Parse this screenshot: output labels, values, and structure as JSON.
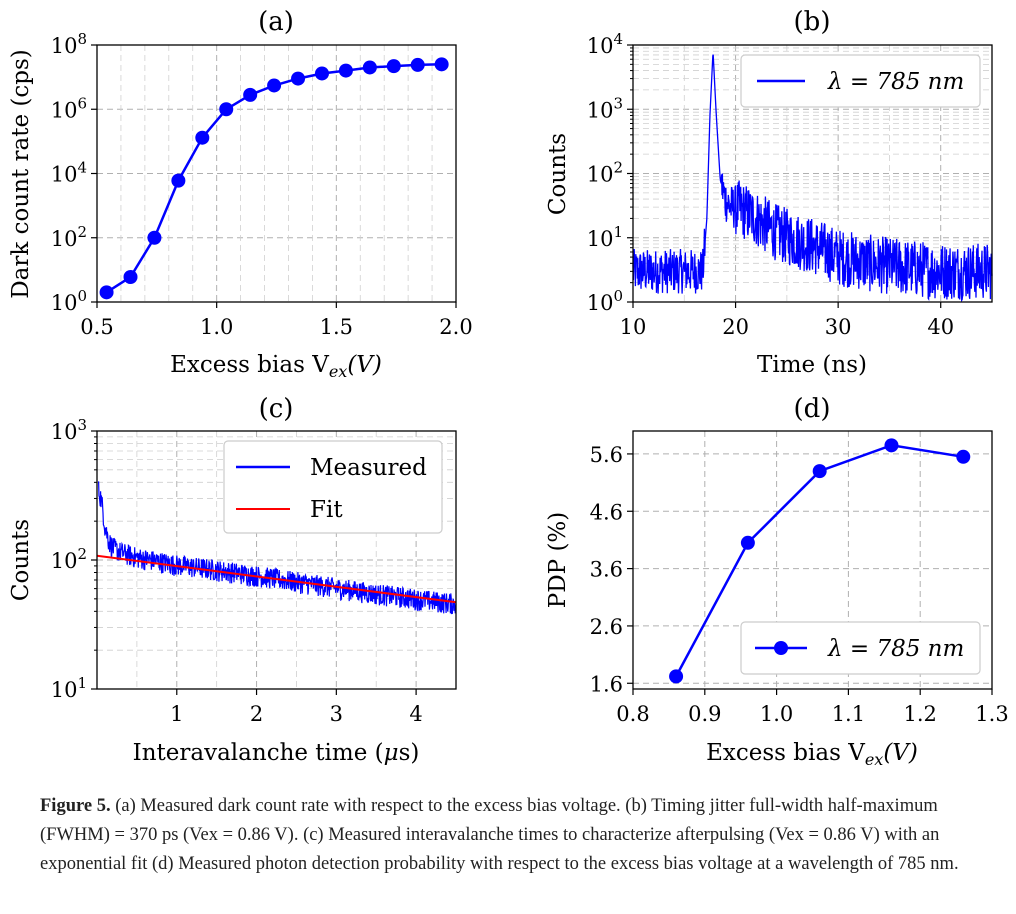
{
  "figure": {
    "caption_label": "Figure 5.",
    "caption_text": "(a) Measured dark count rate with respect to the excess bias voltage. (b) Timing jitter full-width half-maximum (FWHM) = 370 ps (Vex = 0.86 V). (c) Measured interavalanche times to characterize afterpulsing (Vex = 0.86 V) with an exponential fit (d) Measured photon detection probability with respect to the excess bias voltage at a wavelength of 785 nm."
  },
  "colors": {
    "series": "#0000ff",
    "fit": "#ff0000",
    "grid": "#b0b0b0"
  },
  "chart_data": [
    {
      "panel": "(a)",
      "type": "line",
      "title": "(a)",
      "xlabel": "Excess bias V_ex(V)",
      "ylabel": "Dark count rate (cps)",
      "xlim": [
        0.5,
        2.0
      ],
      "ylim": [
        1,
        100000000
      ],
      "yscale": "log",
      "xticks": [
        "0.5",
        "1.0",
        "1.5",
        "2.0"
      ],
      "yticks": [
        "10^0",
        "10^2",
        "10^4",
        "10^6",
        "10^8"
      ],
      "grid": true,
      "x": [
        0.54,
        0.64,
        0.74,
        0.84,
        0.94,
        1.04,
        1.14,
        1.24,
        1.34,
        1.44,
        1.54,
        1.64,
        1.74,
        1.84,
        1.94
      ],
      "values": [
        2,
        6,
        100,
        6000,
        130000,
        1000000,
        2800000,
        5500000,
        9000000,
        13000000,
        16000000,
        20000000,
        22000000,
        24000000,
        25000000
      ],
      "marker": "circle"
    },
    {
      "panel": "(b)",
      "type": "line",
      "title": "(b)",
      "xlabel": "Time (ns)",
      "ylabel": "Counts",
      "xlim": [
        10,
        45
      ],
      "ylim": [
        1,
        10000
      ],
      "yscale": "log",
      "xticks": [
        "10",
        "20",
        "30",
        "40"
      ],
      "yticks": [
        "10^0",
        "10^1",
        "10^2",
        "10^3",
        "10^4"
      ],
      "grid": true,
      "legend": "top-right",
      "series": [
        {
          "name": "λ = 785 nm",
          "x": [
            10,
            16.8,
            17.2,
            17.5,
            17.8,
            18.1,
            18.5,
            19,
            19.5,
            20,
            21,
            22,
            24,
            26,
            28,
            30,
            33,
            36,
            40,
            45
          ],
          "values": [
            3,
            3,
            20,
            800,
            8000,
            900,
            80,
            40,
            30,
            30,
            25,
            20,
            12,
            9,
            7,
            5,
            4,
            3.5,
            3,
            3
          ]
        }
      ]
    },
    {
      "panel": "(c)",
      "type": "line",
      "title": "(c)",
      "xlabel": "Interavalanche time (μs)",
      "ylabel": "Counts",
      "xlim": [
        0,
        4.5
      ],
      "ylim": [
        10,
        1000
      ],
      "yscale": "log",
      "xticks": [
        "1",
        "2",
        "3",
        "4"
      ],
      "yticks": [
        "10^1",
        "10^2",
        "10^3"
      ],
      "grid": true,
      "legend": "top-right",
      "series": [
        {
          "name": "Measured",
          "x": [
            0.02,
            0.05,
            0.1,
            0.15,
            0.2,
            0.3,
            0.5,
            1.0,
            1.5,
            2.0,
            2.5,
            3.0,
            3.5,
            4.0,
            4.5
          ],
          "values": [
            350,
            300,
            180,
            140,
            125,
            115,
            105,
            92,
            84,
            76,
            68,
            61,
            55,
            50,
            46
          ]
        },
        {
          "name": "Fit",
          "x": [
            0.0,
            4.5
          ],
          "values": [
            108,
            47
          ]
        }
      ]
    },
    {
      "panel": "(d)",
      "type": "line",
      "title": "(d)",
      "xlabel": "Excess bias V_ex(V)",
      "ylabel": "PDP (%)",
      "xlim": [
        0.8,
        1.3
      ],
      "ylim": [
        1.5,
        6.0
      ],
      "xticks": [
        "0.8",
        "0.9",
        "1.0",
        "1.1",
        "1.2",
        "1.3"
      ],
      "yticks": [
        "1.6",
        "2.6",
        "3.6",
        "4.6",
        "5.6"
      ],
      "grid": true,
      "legend": "bottom-right",
      "series": [
        {
          "name": "λ = 785 nm",
          "x": [
            0.86,
            0.96,
            1.06,
            1.16,
            1.26
          ],
          "values": [
            1.72,
            4.05,
            5.3,
            5.75,
            5.55
          ]
        }
      ]
    }
  ]
}
